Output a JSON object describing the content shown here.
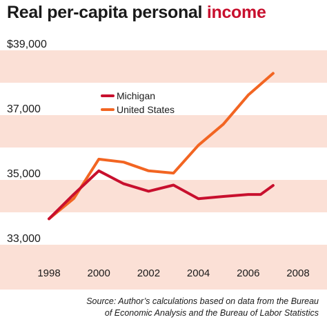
{
  "title": {
    "main": "Real per-capita personal ",
    "accent": "income"
  },
  "source": {
    "line1": "Source: Author’s calculations based on data from the Bureau",
    "line2": "of Economic Analysis and the Bureau of Labor Statistics"
  },
  "chart_data": {
    "type": "line",
    "title": "Real per-capita personal income",
    "xlabel": "",
    "ylabel": "",
    "xlim": [
      1998,
      2008
    ],
    "ylim": [
      33000,
      39000
    ],
    "x_ticks": [
      "1998",
      "2000",
      "2002",
      "2004",
      "2006",
      "2008"
    ],
    "y_ticks": [
      "33,000",
      "35,000",
      "37,000",
      "$39,000"
    ],
    "legend_position": "upper-left inside plot",
    "grid": "alternating horizontal bands",
    "series": [
      {
        "name": "Michigan",
        "color": "#c8102e",
        "x": [
          1998,
          1999,
          2000,
          2001,
          2002,
          2003,
          2004,
          2005,
          2006,
          2006.5,
          2007
        ],
        "values": [
          33800,
          34560,
          35280,
          34880,
          34650,
          34840,
          34420,
          34490,
          34550,
          34550,
          34830
        ]
      },
      {
        "name": "United States",
        "color": "#f26522",
        "x": [
          1998,
          1999,
          2000,
          2001,
          2002,
          2003,
          2004,
          2005,
          2006,
          2007
        ],
        "values": [
          33800,
          34430,
          35640,
          35550,
          35280,
          35210,
          36070,
          36720,
          37620,
          38290
        ]
      }
    ]
  }
}
